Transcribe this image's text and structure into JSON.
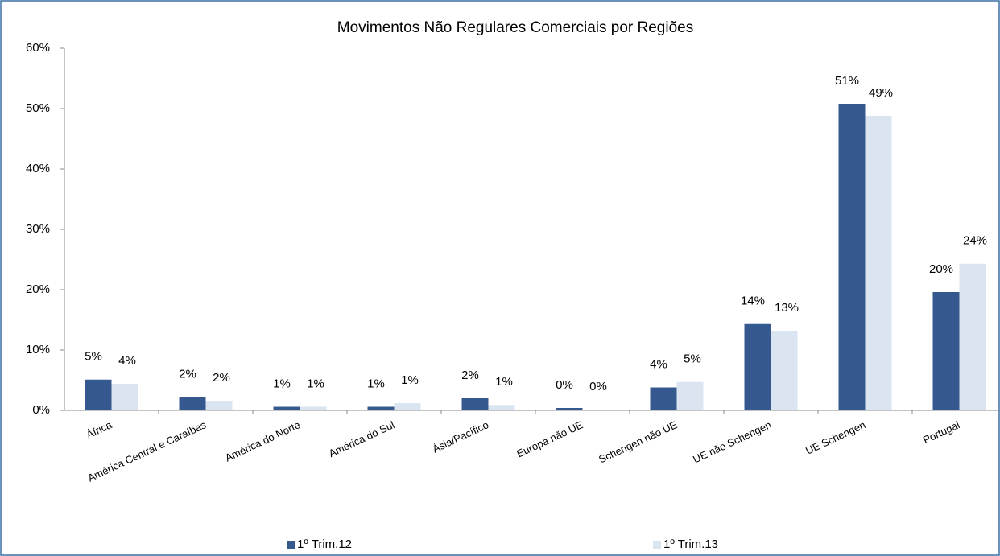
{
  "chart_data": {
    "type": "bar",
    "title": "Movimentos Não Regulares Comerciais por Regiões",
    "categories": [
      "África",
      "América Central e Caraíbas",
      "América do Norte",
      "América do Sul",
      "Ásia/Pacífico",
      "Europa não UE",
      "Schengen não UE",
      "UE não Schengen",
      "UE Schengen",
      "Portugal"
    ],
    "series": [
      {
        "name": "1º Trim.12",
        "color": "#35598f",
        "values": [
          5.1,
          2.2,
          0.6,
          0.6,
          2.0,
          0.4,
          3.8,
          14.3,
          50.8,
          19.6
        ],
        "value_labels": [
          "5%",
          "2%",
          "1%",
          "1%",
          "2%",
          "0%",
          "4%",
          "14%",
          "51%",
          "20%"
        ]
      },
      {
        "name": "1º Trim.13",
        "color": "#dbe5f1",
        "values": [
          4.4,
          1.6,
          0.6,
          1.2,
          0.9,
          0.1,
          4.7,
          13.2,
          48.8,
          24.3
        ],
        "value_labels": [
          "4%",
          "2%",
          "1%",
          "1%",
          "1%",
          "0%",
          "5%",
          "13%",
          "49%",
          "24%"
        ]
      }
    ],
    "ylim": [
      0,
      60
    ],
    "yticks": [
      {
        "value": 0,
        "label": "0%"
      },
      {
        "value": 10,
        "label": "10%"
      },
      {
        "value": 20,
        "label": "20%"
      },
      {
        "value": 30,
        "label": "30%"
      },
      {
        "value": 40,
        "label": "40%"
      },
      {
        "value": 50,
        "label": "50%"
      },
      {
        "value": 60,
        "label": "60%"
      }
    ],
    "legend": "bottom"
  }
}
